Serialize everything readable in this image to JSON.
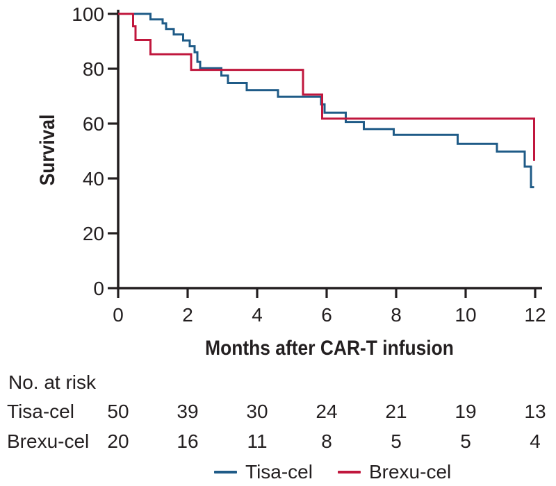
{
  "chart_data": {
    "type": "line",
    "subtype": "kaplan-meier-step-survival",
    "title": "",
    "xlabel": "Months after CAR-T infusion",
    "ylabel": "Survival",
    "xlim": [
      0,
      12
    ],
    "ylim": [
      0,
      100
    ],
    "xticks": [
      0,
      2,
      4,
      6,
      8,
      10,
      12
    ],
    "yticks": [
      100,
      80,
      60,
      40,
      20,
      0
    ],
    "grid": false,
    "legend_position": "bottom",
    "series": [
      {
        "name": "Tisa-cel",
        "color": "#1f5b87",
        "points": [
          [
            0,
            100
          ],
          [
            0.93,
            100
          ],
          [
            0.93,
            98
          ],
          [
            1.28,
            98
          ],
          [
            1.28,
            96.5
          ],
          [
            1.38,
            96.5
          ],
          [
            1.38,
            94.5
          ],
          [
            1.6,
            94.5
          ],
          [
            1.6,
            92.5
          ],
          [
            1.87,
            92.5
          ],
          [
            1.87,
            90.3
          ],
          [
            2.06,
            90.3
          ],
          [
            2.06,
            88.2
          ],
          [
            2.2,
            88.2
          ],
          [
            2.2,
            86
          ],
          [
            2.28,
            86
          ],
          [
            2.28,
            82.5
          ],
          [
            2.36,
            82.5
          ],
          [
            2.36,
            80.2
          ],
          [
            2.97,
            80.2
          ],
          [
            2.97,
            77.5
          ],
          [
            3.16,
            77.5
          ],
          [
            3.16,
            74.8
          ],
          [
            3.7,
            74.8
          ],
          [
            3.7,
            72.2
          ],
          [
            4.6,
            72.2
          ],
          [
            4.6,
            69.8
          ],
          [
            5.84,
            69.8
          ],
          [
            5.84,
            67
          ],
          [
            5.94,
            67
          ],
          [
            5.94,
            64
          ],
          [
            6.55,
            64
          ],
          [
            6.55,
            60.6
          ],
          [
            7.07,
            60.6
          ],
          [
            7.07,
            58
          ],
          [
            7.93,
            58
          ],
          [
            7.93,
            55.9
          ],
          [
            9.77,
            55.9
          ],
          [
            9.77,
            52.6
          ],
          [
            10.9,
            52.6
          ],
          [
            10.9,
            49.8
          ],
          [
            11.7,
            49.8
          ],
          [
            11.7,
            44.3
          ],
          [
            11.88,
            44.3
          ],
          [
            11.88,
            36.8
          ],
          [
            11.97,
            36.8
          ]
        ]
      },
      {
        "name": "Brexu-cel",
        "color": "#c0173d",
        "points": [
          [
            0,
            100
          ],
          [
            0.43,
            100
          ],
          [
            0.43,
            95.5
          ],
          [
            0.5,
            95.5
          ],
          [
            0.5,
            90.5
          ],
          [
            0.93,
            90.5
          ],
          [
            0.93,
            85.3
          ],
          [
            2.1,
            85.3
          ],
          [
            2.1,
            79.6
          ],
          [
            5.32,
            79.6
          ],
          [
            5.32,
            70.6
          ],
          [
            5.87,
            70.6
          ],
          [
            5.87,
            61.8
          ],
          [
            11.97,
            61.8
          ],
          [
            11.97,
            46.4
          ]
        ]
      }
    ]
  },
  "risk_table": {
    "title": "No. at risk",
    "time_points": [
      0,
      2,
      4,
      6,
      8,
      10,
      12
    ],
    "rows": [
      {
        "label": "Tisa-cel",
        "values": [
          50,
          39,
          30,
          24,
          21,
          19,
          13
        ]
      },
      {
        "label": "Brexu-cel",
        "values": [
          20,
          16,
          11,
          8,
          5,
          5,
          4
        ]
      }
    ]
  },
  "legend": {
    "items": [
      {
        "label": "Tisa-cel",
        "color": "#1f5b87"
      },
      {
        "label": "Brexu-cel",
        "color": "#c0173d"
      }
    ]
  },
  "colors": {
    "axis": "#231f20",
    "text": "#231f20",
    "background": "#ffffff"
  }
}
